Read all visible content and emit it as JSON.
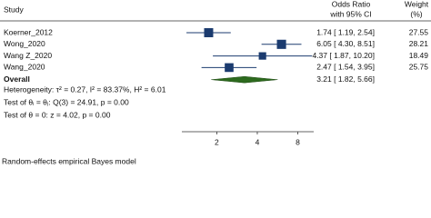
{
  "header": {
    "study": "Study",
    "effect": [
      "Odds Ratio",
      "with 95% CI"
    ],
    "weight": [
      "Weight",
      "(%)"
    ]
  },
  "chart_data": {
    "type": "forest",
    "studies": [
      "Koerner_2012",
      "Wong_2020",
      "Wang Z_2020",
      "Wang_2020"
    ],
    "estimates": [
      1.74,
      6.05,
      4.37,
      2.47
    ],
    "lower": [
      1.19,
      4.3,
      1.87,
      1.54
    ],
    "upper": [
      2.54,
      8.51,
      10.2,
      3.95
    ],
    "value_labels": [
      "1.74 [ 1.19, 2.54]",
      "6.05 [ 4.30, 8.51]",
      "4.37 [ 1.87, 10.20]",
      "2.47 [ 1.54, 3.95]"
    ],
    "weights": [
      27.55,
      28.21,
      18.49,
      25.75
    ],
    "overall": {
      "name": "Overall",
      "estimate": 3.21,
      "lower": 1.82,
      "upper": 5.66,
      "value_label": "3.21 [ 1.82, 5.66]"
    },
    "annotations": [
      "Heterogeneity: τ² = 0.27, I² = 83.37%, H² = 6.01",
      "Test of θᵢ = θⱼ: Q(3) = 24.91, p = 0.00",
      "Test of θ = 0: z = 4.02, p = 0.00"
    ],
    "xlim": [
      1.1,
      10.5
    ],
    "xticks": [
      2,
      4,
      8
    ],
    "log_x": true,
    "color": "#1b3b6f",
    "overall_color": "#2d6a1e"
  },
  "footer": "Random-effects empirical Bayes model"
}
